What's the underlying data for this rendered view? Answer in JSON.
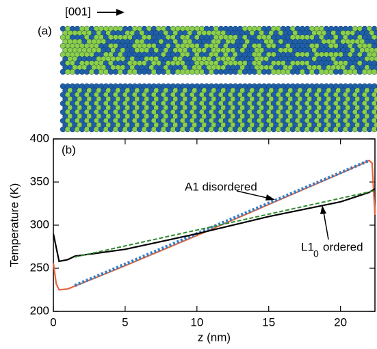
{
  "chart_data": {
    "type": "line",
    "panel_a_label": "(a)",
    "direction_label": "[001]",
    "panel_b_label": "(b)",
    "xlabel": "z (nm)",
    "ylabel": "Temperature (K)",
    "xlim": [
      0,
      22.4
    ],
    "xticks": [
      0,
      5,
      10,
      15,
      20
    ],
    "ylim": [
      200,
      400
    ],
    "yticks": [
      200,
      250,
      300,
      350,
      400
    ],
    "annotations": {
      "disordered": "A1 disordered",
      "ordered_main": "L1",
      "ordered_sub": "0",
      "ordered_rest": "ordered"
    },
    "series": [
      {
        "color": "#000000",
        "style": "solid",
        "x": [
          0,
          0.4,
          1,
          1.5,
          5,
          10,
          15,
          20,
          22,
          22.4
        ],
        "values": [
          290,
          258,
          260,
          264,
          272,
          290,
          310,
          327,
          338,
          342
        ]
      },
      {
        "color": "#2e8b2e",
        "style": "dashed",
        "x": [
          1.5,
          22.4
        ],
        "values": [
          263,
          340
        ]
      },
      {
        "color": "#e8643c",
        "style": "solid",
        "x": [
          0,
          0.2,
          0.4,
          1,
          5,
          10,
          15,
          20,
          22,
          22.2,
          22.4
        ],
        "values": [
          256,
          232,
          225,
          226,
          253,
          288,
          324,
          360,
          375,
          372,
          312
        ]
      },
      {
        "color": "#2f7fc8",
        "style": "dotted",
        "x": [
          1.5,
          22
        ],
        "values": [
          230,
          375
        ]
      }
    ]
  }
}
